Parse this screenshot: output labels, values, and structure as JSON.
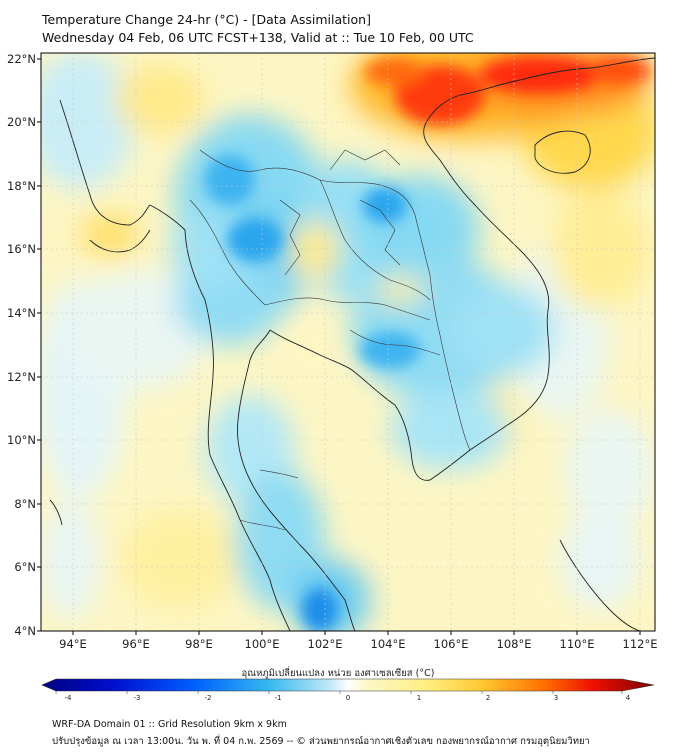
{
  "title_line1": "Temperature Change 24-hr (°C) - [Data Assimilation]",
  "title_line2": "Wednesday 04 Feb, 06 UTC FCST+138, Valid at :: Tue 10 Feb, 00 UTC",
  "lat_labels": [
    "22°N",
    "20°N",
    "18°N",
    "16°N",
    "14°N",
    "12°N",
    "10°N",
    "8°N",
    "6°N",
    "4°N"
  ],
  "lon_labels": [
    "94°E",
    "96°E",
    "98°E",
    "100°E",
    "102°E",
    "104°E",
    "106°E",
    "108°E",
    "110°E",
    "112°E"
  ],
  "colorbar": {
    "title": "อุณหภูมิเปลี่ยนแปลง หน่วย องศาเซลเซียส (°C)",
    "ticks": [
      "-4",
      "-3",
      "-2",
      "-1",
      "0",
      "1",
      "2",
      "3",
      "4"
    ],
    "min": -4,
    "max": 4
  },
  "footer_line1": "WRF-DA Domain 01 :: Grid Resolution 9km x 9km",
  "footer_line2": "ปรับปรุงข้อมูล ณ เวลา 13:00น. วัน พ. ที่ 04 ก.พ. 2569 -- © ส่วนพยากรณ์อากาศเชิงตัวเลข กองพยากรณ์อากาศ กรมอุตุนิยมวิทยา",
  "colors": {
    "cold_deep": "#00007f",
    "cold": "#1e90ff",
    "cyan": "#5ad2f0",
    "neutral": "#eef7fb",
    "warm_light": "#fff4a8",
    "warm": "#ffd84d",
    "hot": "#ff9a1f",
    "hot_deep": "#7f0000"
  }
}
